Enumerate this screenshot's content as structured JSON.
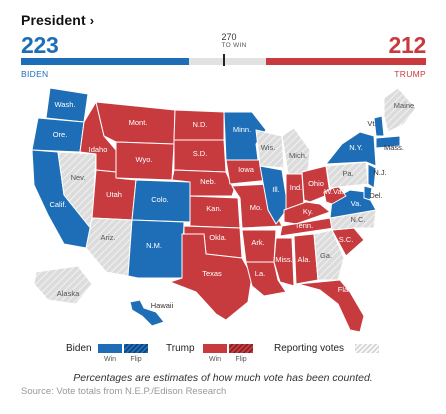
{
  "header": {
    "title": "President",
    "chevron": "›"
  },
  "biden": {
    "name": "BIDEN",
    "electoral_votes": "223",
    "bar_share": 0.4142,
    "color": "#1d6eb6"
  },
  "trump": {
    "name": "TRUMP",
    "electoral_votes": "212",
    "bar_share": 0.3941,
    "color": "#c73b3f"
  },
  "to_win": {
    "number": "270",
    "label": "TO WIN",
    "share": 0.5
  },
  "reporting_color": "#dcdcdc",
  "map": {
    "states": [
      {
        "abbr": "Wash.",
        "winner": "biden"
      },
      {
        "abbr": "Ore.",
        "winner": "biden"
      },
      {
        "abbr": "Calif.",
        "winner": "biden"
      },
      {
        "abbr": "Nev.",
        "winner": "reporting"
      },
      {
        "abbr": "Idaho",
        "winner": "trump"
      },
      {
        "abbr": "Mont.",
        "winner": "trump"
      },
      {
        "abbr": "Wyo.",
        "winner": "trump"
      },
      {
        "abbr": "Utah",
        "winner": "trump"
      },
      {
        "abbr": "Ariz.",
        "winner": "reporting"
      },
      {
        "abbr": "Colo.",
        "winner": "biden"
      },
      {
        "abbr": "N.M.",
        "winner": "biden"
      },
      {
        "abbr": "N.D.",
        "winner": "trump"
      },
      {
        "abbr": "S.D.",
        "winner": "trump"
      },
      {
        "abbr": "Neb.",
        "winner": "trump"
      },
      {
        "abbr": "Kan.",
        "winner": "trump"
      },
      {
        "abbr": "Okla.",
        "winner": "trump"
      },
      {
        "abbr": "Texas",
        "winner": "trump"
      },
      {
        "abbr": "Minn.",
        "winner": "biden"
      },
      {
        "abbr": "Iowa",
        "winner": "trump"
      },
      {
        "abbr": "Mo.",
        "winner": "trump"
      },
      {
        "abbr": "Ark.",
        "winner": "trump"
      },
      {
        "abbr": "La.",
        "winner": "trump"
      },
      {
        "abbr": "Wis.",
        "winner": "reporting"
      },
      {
        "abbr": "Ill.",
        "winner": "biden"
      },
      {
        "abbr": "Mich.",
        "winner": "reporting"
      },
      {
        "abbr": "Ind.",
        "winner": "trump"
      },
      {
        "abbr": "Ohio",
        "winner": "trump"
      },
      {
        "abbr": "Ky.",
        "winner": "trump"
      },
      {
        "abbr": "Tenn.",
        "winner": "trump"
      },
      {
        "abbr": "Miss.",
        "winner": "trump"
      },
      {
        "abbr": "Ala.",
        "winner": "trump"
      },
      {
        "abbr": "Ga.",
        "winner": "reporting"
      },
      {
        "abbr": "Fla.",
        "winner": "trump"
      },
      {
        "abbr": "S.C.",
        "winner": "trump"
      },
      {
        "abbr": "N.C.",
        "winner": "reporting"
      },
      {
        "abbr": "Va.",
        "winner": "biden"
      },
      {
        "abbr": "W.Va.",
        "winner": "trump"
      },
      {
        "abbr": "Pa.",
        "winner": "reporting"
      },
      {
        "abbr": "N.Y.",
        "winner": "biden"
      },
      {
        "abbr": "N.J.",
        "winner": "biden"
      },
      {
        "abbr": "Del.",
        "winner": "biden"
      },
      {
        "abbr": "Vt.",
        "winner": "biden"
      },
      {
        "abbr": "Mass.",
        "winner": "biden"
      },
      {
        "abbr": "Maine",
        "winner": "reporting"
      },
      {
        "abbr": "Alaska",
        "winner": "reporting"
      },
      {
        "abbr": "Hawaii",
        "winner": "biden"
      }
    ]
  },
  "legend": {
    "biden_label": "Biden",
    "trump_label": "Trump",
    "win_label": "Win",
    "flip_label": "Flip",
    "reporting_label": "Reporting votes"
  },
  "note": "Percentages are estimates of how much vote has been counted.",
  "source": "Source: Vote totals from N.E.P./Edison Research"
}
